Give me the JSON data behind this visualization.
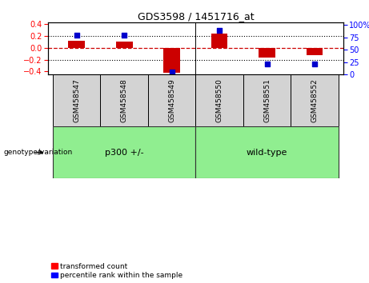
{
  "title": "GDS3598 / 1451716_at",
  "samples": [
    "GSM458547",
    "GSM458548",
    "GSM458549",
    "GSM458550",
    "GSM458551",
    "GSM458552"
  ],
  "bar_values": [
    0.11,
    0.1,
    -0.42,
    0.24,
    -0.17,
    -0.13
  ],
  "dot_values_pct": [
    80,
    80,
    5,
    90,
    22,
    22
  ],
  "ylim_left": [
    -0.45,
    0.42
  ],
  "ylim_right": [
    0,
    105
  ],
  "yticks_left": [
    -0.4,
    -0.2,
    0.0,
    0.2,
    0.4
  ],
  "yticks_right": [
    0,
    25,
    50,
    75,
    100
  ],
  "bar_color": "#cc0000",
  "dot_color": "#0000cc",
  "zero_line_color": "#cc0000",
  "dotted_line_color": "#000000",
  "group_color": "#90ee90",
  "sample_box_color": "#d3d3d3",
  "legend_items": [
    "transformed count",
    "percentile rank within the sample"
  ],
  "bar_width": 0.35,
  "group_divider": 2.5,
  "n_samples": 6
}
